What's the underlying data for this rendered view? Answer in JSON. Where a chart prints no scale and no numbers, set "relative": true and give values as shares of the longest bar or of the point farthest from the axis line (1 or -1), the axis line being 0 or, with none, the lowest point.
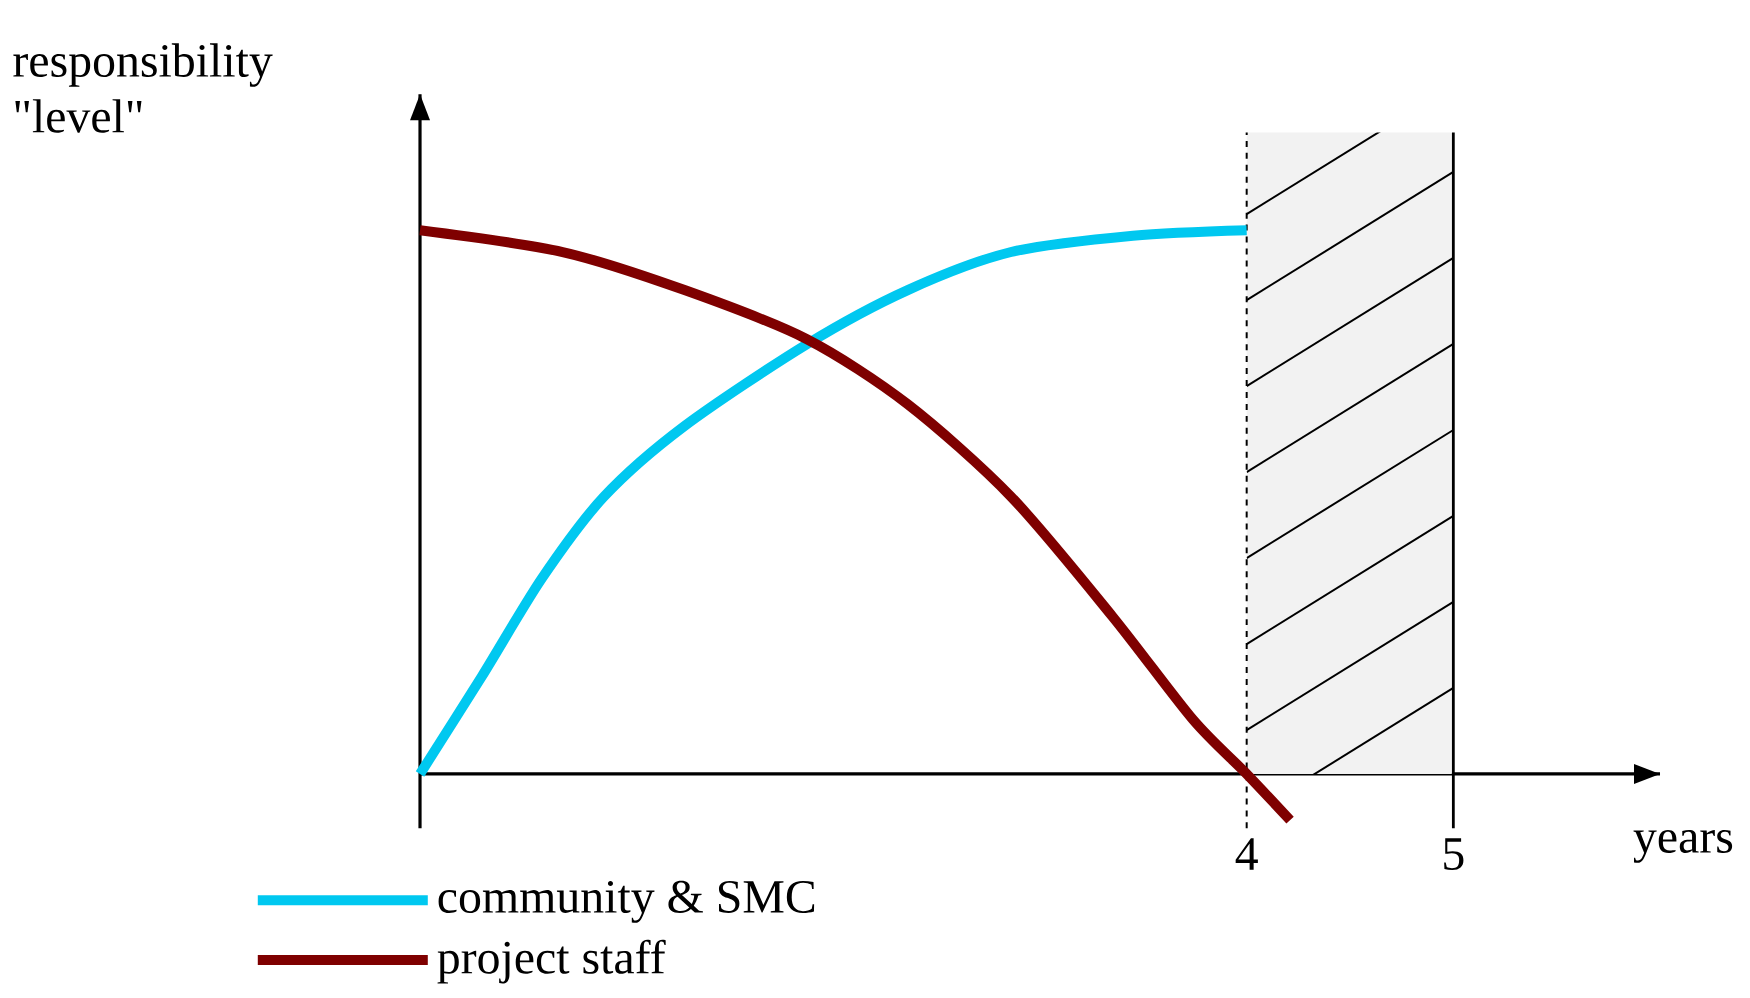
{
  "chart_data": {
    "type": "line",
    "relative": true,
    "ylabel": "responsibility \"level\"",
    "xlabel": "years",
    "x": [
      0,
      0.3,
      0.59,
      0.89,
      1.28,
      1.87,
      2.36,
      2.86,
      3.45,
      4.0
    ],
    "series": [
      {
        "name": "community & SMC",
        "color": "#00c8f0",
        "values": [
          0,
          0.18,
          0.36,
          0.51,
          0.64,
          0.79,
          0.89,
          0.96,
          0.99,
          1.0
        ]
      },
      {
        "name": "project staff",
        "color": "#7f0000",
        "x": [
          0,
          0.69,
          1.28,
          1.87,
          2.36,
          2.86,
          3.35,
          3.74,
          4.0,
          4.21
        ],
        "values": [
          1.0,
          0.96,
          0.89,
          0.8,
          0.68,
          0.51,
          0.29,
          0.1,
          0,
          -0.085
        ]
      }
    ],
    "xlim": [
      0,
      6
    ],
    "xticks": [
      {
        "value": 0,
        "label": null
      },
      4,
      5
    ],
    "bands": [
      {
        "axis": "x",
        "from": 4,
        "to": 5,
        "color": "#f2f2f2"
      }
    ],
    "ref_lines": [
      {
        "axis": "x",
        "value": 4,
        "line_style": "dashed",
        "color": "#000000"
      },
      {
        "axis": "x",
        "value": 5,
        "line_style": "solid",
        "color": "#000000"
      }
    ],
    "legend": "bottom",
    "grid": false,
    "marker": "none",
    "line_style": "solid"
  }
}
